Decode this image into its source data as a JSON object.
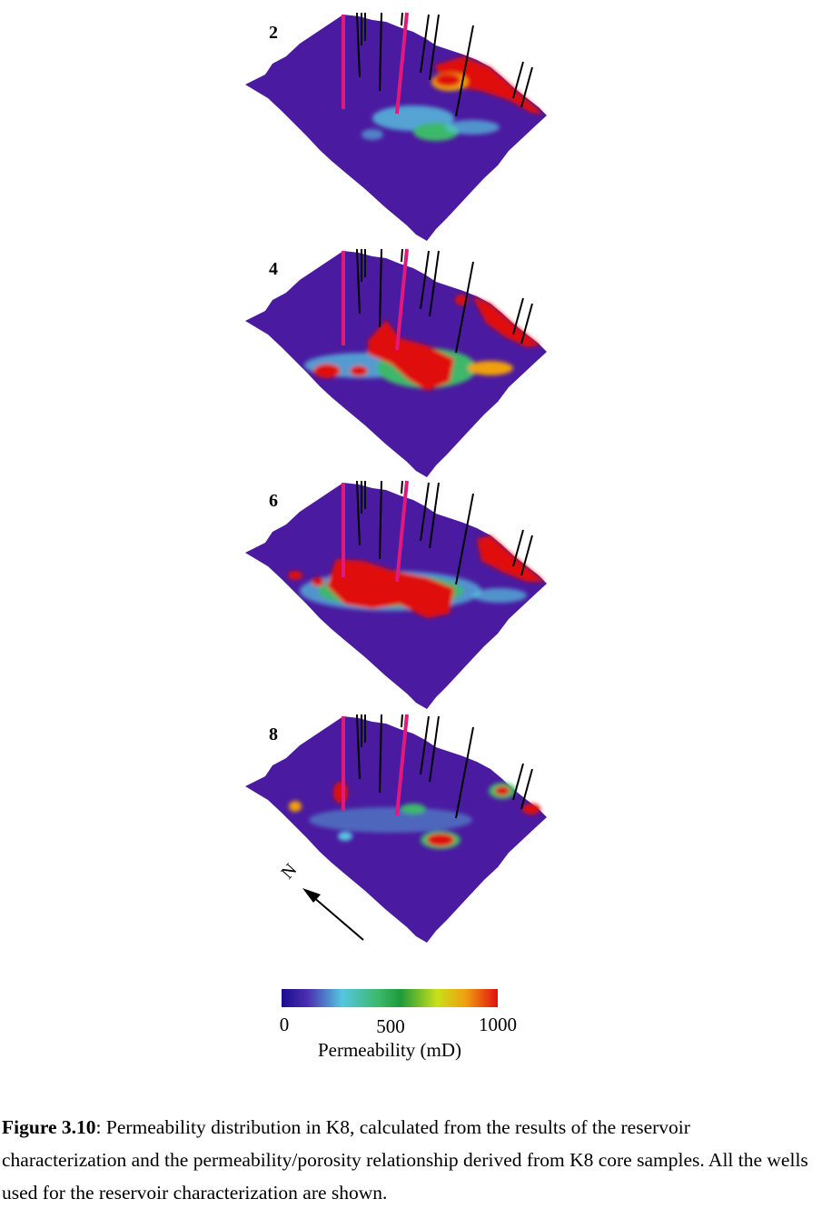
{
  "figure": {
    "panels": [
      {
        "label": "2"
      },
      {
        "label": "4"
      },
      {
        "label": "6"
      },
      {
        "label": "8"
      }
    ],
    "compass_label": "N",
    "colorbar": {
      "ticks": [
        "0",
        "500",
        "1000"
      ],
      "label": "Permeability (mD)",
      "colors": [
        "#1b0d8f",
        "#4b2fb0",
        "#55c6e0",
        "#3cb86a",
        "#1e9a3c",
        "#c9e01a",
        "#f0a010",
        "#e01010"
      ]
    },
    "surface_color": "#4a1aa0",
    "well_colors": {
      "standard": "#000000",
      "highlighted": "#e0197d"
    }
  },
  "caption": {
    "label": "Figure 3.10",
    "text": ": Permeability distribution in K8, calculated from the results of the reservoir characterization and the permeability/porosity relationship derived from K8 core samples. All the wells used for the reservoir characterization are shown."
  }
}
